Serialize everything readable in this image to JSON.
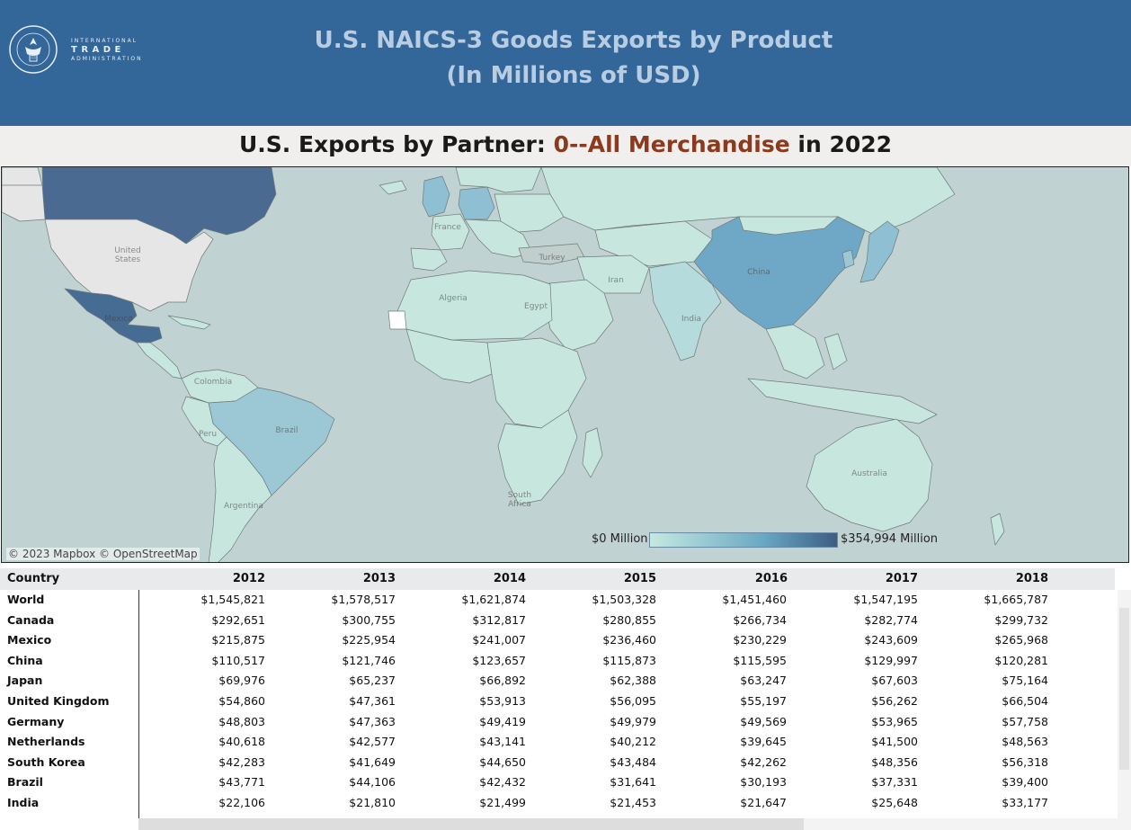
{
  "header": {
    "org_line1": "INTERNATIONAL",
    "org_line2": "TRADE",
    "org_line3": "ADMINISTRATION",
    "title_line1": "U.S. NAICS-3 Goods Exports by Product",
    "title_line2": "(In Millions of USD)"
  },
  "subtitle": {
    "prefix": "U.S. Exports by Partner: ",
    "product": "0--All Merchandise",
    "suffix": " in 2022"
  },
  "map": {
    "attribution": "© 2023 Mapbox  © OpenStreetMap",
    "legend_min": "$0 Million",
    "legend_max": "$354,994 Million",
    "labels": {
      "united_states": "United\nStates",
      "china": "China",
      "india": "India",
      "brazil": "Brazil",
      "australia": "Australia",
      "mexico": "Mexico",
      "algeria": "Algeria",
      "egypt": "Egypt",
      "turkey": "Turkey",
      "iran": "Iran",
      "france": "France",
      "peru": "Peru",
      "colombia": "Colombia",
      "argentina": "Argentina",
      "south_africa": "South Africa"
    },
    "colors": {
      "ocean": "#c0d2d1",
      "land_default": "#c7e6de",
      "no_data": "#e6e6e6",
      "high": "#3c5d83",
      "canada": "#4a6a91",
      "mexico": "#466c94",
      "china": "#6fa8c6",
      "japan": "#8fbfd3",
      "brazil": "#9cc8d6",
      "europe_mid": "#a9d1d9"
    }
  },
  "table": {
    "headers": [
      "Country",
      "2012",
      "2013",
      "2014",
      "2015",
      "2016",
      "2017",
      "2018"
    ],
    "rows": [
      {
        "country": "World",
        "values": [
          "$1,545,821",
          "$1,578,517",
          "$1,621,874",
          "$1,503,328",
          "$1,451,460",
          "$1,547,195",
          "$1,665,787"
        ]
      },
      {
        "country": "Canada",
        "values": [
          "$292,651",
          "$300,755",
          "$312,817",
          "$280,855",
          "$266,734",
          "$282,774",
          "$299,732"
        ]
      },
      {
        "country": "Mexico",
        "values": [
          "$215,875",
          "$225,954",
          "$241,007",
          "$236,460",
          "$230,229",
          "$243,609",
          "$265,968"
        ]
      },
      {
        "country": "China",
        "values": [
          "$110,517",
          "$121,746",
          "$123,657",
          "$115,873",
          "$115,595",
          "$129,997",
          "$120,281"
        ]
      },
      {
        "country": "Japan",
        "values": [
          "$69,976",
          "$65,237",
          "$66,892",
          "$62,388",
          "$63,247",
          "$67,603",
          "$75,164"
        ]
      },
      {
        "country": "United Kingdom",
        "values": [
          "$54,860",
          "$47,361",
          "$53,913",
          "$56,095",
          "$55,197",
          "$56,262",
          "$66,504"
        ]
      },
      {
        "country": "Germany",
        "values": [
          "$48,803",
          "$47,363",
          "$49,419",
          "$49,979",
          "$49,569",
          "$53,965",
          "$57,758"
        ]
      },
      {
        "country": "Netherlands",
        "values": [
          "$40,618",
          "$42,577",
          "$43,141",
          "$40,212",
          "$39,645",
          "$41,500",
          "$48,563"
        ]
      },
      {
        "country": "South Korea",
        "values": [
          "$42,283",
          "$41,649",
          "$44,650",
          "$43,484",
          "$42,262",
          "$48,356",
          "$56,318"
        ]
      },
      {
        "country": "Brazil",
        "values": [
          "$43,771",
          "$44,106",
          "$42,432",
          "$31,641",
          "$30,193",
          "$37,331",
          "$39,400"
        ]
      },
      {
        "country": "India",
        "values": [
          "$22,106",
          "$21,810",
          "$21,499",
          "$21,453",
          "$21,647",
          "$25,648",
          "$33,177"
        ]
      }
    ]
  }
}
